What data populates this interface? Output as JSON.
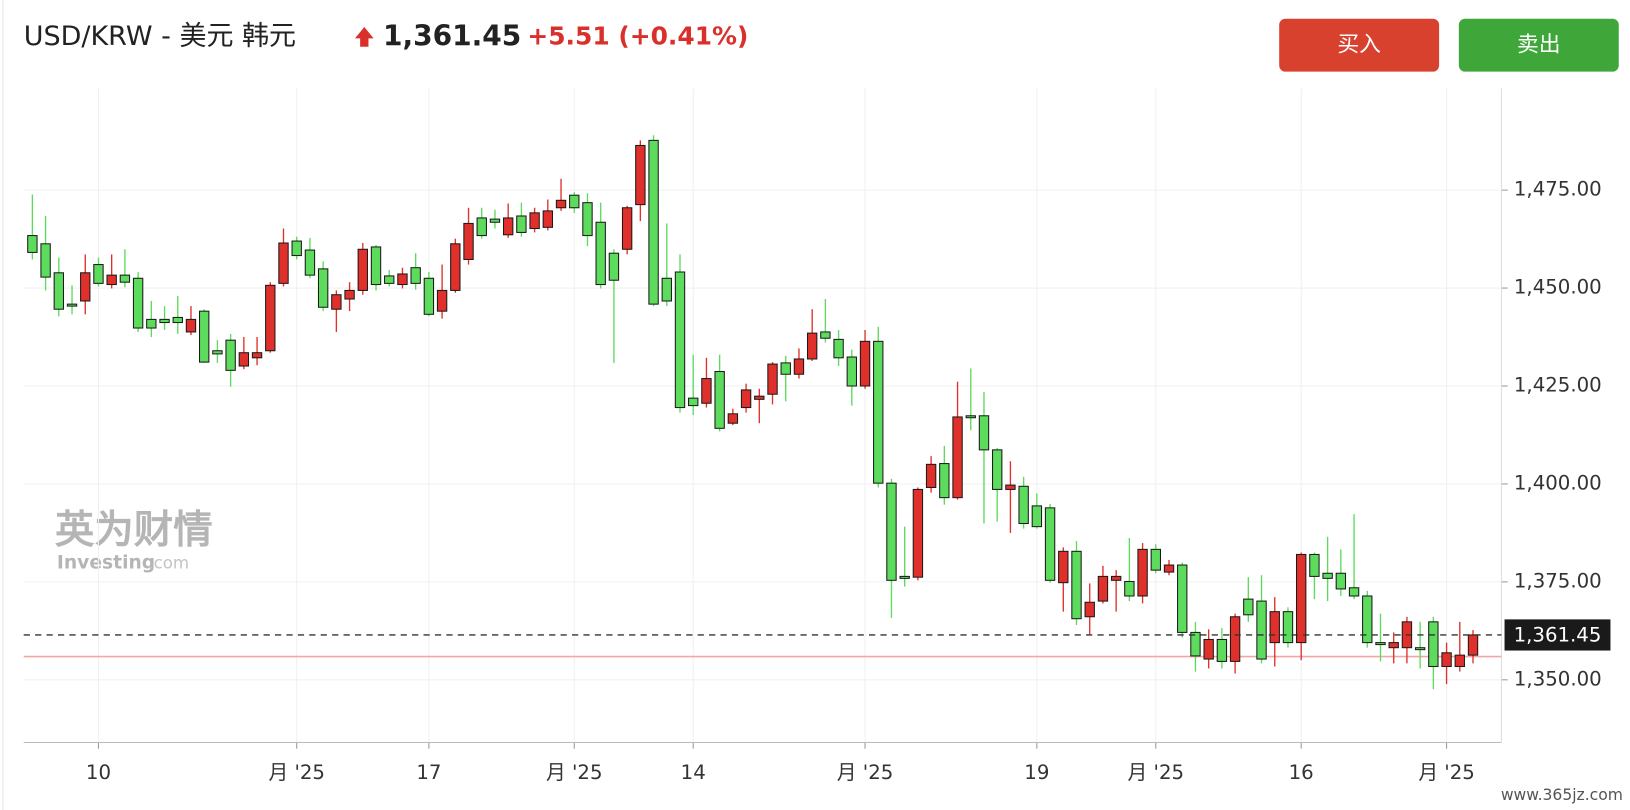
{
  "chart_data": {
    "type": "candlestick",
    "title": "USD/KRW - 美元 韩元",
    "last": {
      "value": 1361.45,
      "label": "1,361.45"
    },
    "change": "+5.51 (+0.41%)",
    "reference_line": 1355.94,
    "reference_color": "#f4a6a6",
    "up_color": "#e0302b",
    "down_color": "#5ddb5d",
    "grid": true,
    "ylim": [
      1334,
      1501
    ],
    "yticks": [
      {
        "value": 1350,
        "label": "1,350.00"
      },
      {
        "value": 1375,
        "label": "1,375.00"
      },
      {
        "value": 1400,
        "label": "1,400.00"
      },
      {
        "value": 1425,
        "label": "1,425.00"
      },
      {
        "value": 1450,
        "label": "1,450.00"
      },
      {
        "value": 1475,
        "label": "1,475.00"
      }
    ],
    "categories": [
      null,
      null,
      null,
      null,
      null,
      "10",
      null,
      null,
      null,
      null,
      null,
      null,
      null,
      null,
      null,
      null,
      null,
      null,
      null,
      null,
      "月 '25",
      null,
      null,
      null,
      null,
      null,
      null,
      null,
      null,
      null,
      "17",
      null,
      null,
      null,
      null,
      null,
      null,
      null,
      null,
      null,
      null,
      "月 '25",
      null,
      null,
      null,
      null,
      null,
      null,
      null,
      null,
      "14",
      null,
      null,
      null,
      null,
      null,
      null,
      null,
      null,
      null,
      null,
      null,
      null,
      "月 '25",
      null,
      null,
      null,
      null,
      null,
      null,
      null,
      null,
      null,
      null,
      null,
      null,
      "19",
      null,
      null,
      null,
      null,
      null,
      null,
      null,
      null,
      "月 '25",
      null,
      null,
      null,
      null,
      null,
      null,
      null,
      null,
      null,
      null,
      "16",
      null,
      null,
      null,
      null,
      null,
      null,
      null,
      null,
      null,
      null,
      "月 '25",
      null,
      null
    ],
    "open": [
      1463.4,
      1461.3,
      1453.9,
      1445.9,
      1446.7,
      1456.0,
      1450.9,
      1453.3,
      1452.5,
      1442.0,
      1442.0,
      1442.5,
      1438.8,
      1444.1,
      1434.0,
      1436.7,
      1430.1,
      1432.2,
      1434.0,
      1451.2,
      1462.0,
      1459.7,
      1454.9,
      1444.6,
      1447.2,
      1449.4,
      1460.5,
      1453.1,
      1450.9,
      1455.2,
      1452.5,
      1444.1,
      1449.4,
      1457.3,
      1467.9,
      1467.6,
      1463.6,
      1468.4,
      1465.2,
      1465.5,
      1470.5,
      1473.7,
      1471.8,
      1466.8,
      1458.9,
      1459.9,
      1471.3,
      1487.7,
      1452.5,
      1454.1,
      1421.9,
      1420.6,
      1428.7,
      1415.5,
      1419.5,
      1421.6,
      1422.9,
      1430.9,
      1428.0,
      1431.9,
      1438.8,
      1436.9,
      1432.4,
      1425.0,
      1436.4,
      1400.2,
      1376.4,
      1376.2,
      1399.1,
      1405.2,
      1396.5,
      1417.4,
      1417.4,
      1408.7,
      1398.6,
      1399.4,
      1394.4,
      1393.9,
      1374.8,
      1382.8,
      1366.1,
      1370.1,
      1375.4,
      1375.1,
      1371.4,
      1383.3,
      1377.5,
      1379.3,
      1362.1,
      1355.3,
      1360.3,
      1354.7,
      1370.6,
      1370.1,
      1359.5,
      1367.4,
      1359.5,
      1382.0,
      1377.2,
      1377.2,
      1373.5,
      1371.4,
      1359.5,
      1358.2,
      1358.2,
      1358.2,
      1364.8,
      1353.4,
      1353.4,
      1356.3
    ],
    "high": [
      1473.9,
      1468.4,
      1457.8,
      1450.7,
      1458.6,
      1457.8,
      1458.6,
      1459.9,
      1454.1,
      1446.7,
      1445.4,
      1448.0,
      1445.4,
      1444.6,
      1436.7,
      1438.3,
      1437.5,
      1437.5,
      1451.5,
      1465.2,
      1463.1,
      1462.8,
      1456.8,
      1449.4,
      1451.5,
      1461.5,
      1461.0,
      1454.6,
      1455.2,
      1458.9,
      1454.1,
      1456.0,
      1462.6,
      1470.5,
      1470.5,
      1470.0,
      1471.6,
      1471.8,
      1470.5,
      1472.6,
      1477.9,
      1474.5,
      1474.2,
      1471.8,
      1459.9,
      1471.0,
      1487.7,
      1489.0,
      1466.5,
      1458.6,
      1433.0,
      1432.2,
      1433.0,
      1419.2,
      1425.6,
      1424.3,
      1431.1,
      1432.7,
      1434.6,
      1444.6,
      1447.2,
      1439.3,
      1434.3,
      1439.3,
      1440.1,
      1401.3,
      1389.1,
      1399.1,
      1407.1,
      1409.7,
      1426.1,
      1429.5,
      1423.5,
      1409.2,
      1405.8,
      1401.8,
      1397.6,
      1394.9,
      1383.8,
      1385.4,
      1374.6,
      1379.1,
      1378.0,
      1386.2,
      1384.9,
      1384.6,
      1380.6,
      1379.9,
      1364.8,
      1362.9,
      1363.2,
      1366.9,
      1376.2,
      1376.7,
      1371.1,
      1368.5,
      1382.5,
      1382.5,
      1386.5,
      1383.3,
      1392.3,
      1372.7,
      1366.9,
      1362.1,
      1366.1,
      1364.8,
      1366.1,
      1359.5,
      1364.8,
      1362.7
    ],
    "low": [
      1457.3,
      1449.4,
      1442.8,
      1443.3,
      1443.3,
      1450.4,
      1449.9,
      1450.2,
      1438.8,
      1437.5,
      1439.3,
      1438.3,
      1438.0,
      1430.9,
      1430.9,
      1424.8,
      1429.3,
      1430.3,
      1433.5,
      1450.4,
      1457.3,
      1452.5,
      1444.1,
      1438.8,
      1444.1,
      1448.3,
      1449.4,
      1450.4,
      1449.9,
      1449.6,
      1442.8,
      1442.2,
      1448.8,
      1456.0,
      1462.6,
      1465.2,
      1462.8,
      1463.1,
      1464.2,
      1464.7,
      1469.7,
      1469.2,
      1460.7,
      1449.9,
      1430.9,
      1458.6,
      1467.1,
      1445.4,
      1445.4,
      1418.2,
      1417.6,
      1419.5,
      1413.4,
      1415.0,
      1418.2,
      1415.5,
      1420.3,
      1421.1,
      1426.9,
      1431.4,
      1436.1,
      1430.1,
      1420.0,
      1424.3,
      1399.1,
      1365.8,
      1373.8,
      1375.4,
      1397.8,
      1394.7,
      1396.0,
      1413.7,
      1389.9,
      1390.4,
      1387.5,
      1388.6,
      1388.6,
      1374.8,
      1367.4,
      1364.0,
      1361.6,
      1369.5,
      1367.4,
      1370.1,
      1369.5,
      1377.2,
      1376.7,
      1360.8,
      1352.1,
      1352.9,
      1352.9,
      1351.6,
      1364.8,
      1354.2,
      1353.4,
      1358.2,
      1355.0,
      1370.6,
      1370.1,
      1371.4,
      1370.6,
      1358.2,
      1354.7,
      1354.2,
      1354.2,
      1352.9,
      1347.6,
      1348.9,
      1352.1,
      1354.2
    ],
    "close": [
      1459.1,
      1452.8,
      1444.6,
      1445.4,
      1453.9,
      1451.2,
      1453.3,
      1451.5,
      1439.8,
      1439.8,
      1441.2,
      1441.2,
      1442.0,
      1431.1,
      1433.2,
      1429.0,
      1433.5,
      1433.5,
      1450.7,
      1461.5,
      1458.3,
      1453.3,
      1445.1,
      1448.3,
      1449.4,
      1459.9,
      1450.9,
      1451.2,
      1453.6,
      1451.2,
      1443.3,
      1449.4,
      1461.3,
      1466.5,
      1463.4,
      1466.8,
      1467.9,
      1464.2,
      1469.2,
      1469.7,
      1472.4,
      1470.5,
      1463.4,
      1450.9,
      1452.0,
      1470.5,
      1486.4,
      1445.9,
      1446.7,
      1419.5,
      1420.0,
      1426.9,
      1414.2,
      1417.9,
      1424.0,
      1422.4,
      1430.6,
      1428.0,
      1431.9,
      1438.5,
      1437.2,
      1432.2,
      1425.0,
      1436.4,
      1400.2,
      1375.4,
      1375.9,
      1398.6,
      1405.0,
      1396.5,
      1417.1,
      1416.9,
      1408.7,
      1398.6,
      1399.7,
      1389.9,
      1389.1,
      1375.4,
      1382.8,
      1365.6,
      1369.8,
      1376.4,
      1376.4,
      1371.4,
      1383.3,
      1378.0,
      1379.3,
      1362.1,
      1356.1,
      1360.3,
      1354.7,
      1366.1,
      1366.6,
      1355.3,
      1367.4,
      1359.5,
      1382.0,
      1376.4,
      1375.9,
      1373.2,
      1371.4,
      1359.5,
      1359.0,
      1359.5,
      1364.8,
      1357.7,
      1353.4,
      1356.9,
      1356.3,
      1361.45
    ]
  },
  "buttons": {
    "buy": "买入",
    "sell": "卖出"
  },
  "watermark": {
    "cn": "英为财情",
    "en": "Investing",
    "suffix": ".com"
  },
  "site": "www.365jz.com"
}
